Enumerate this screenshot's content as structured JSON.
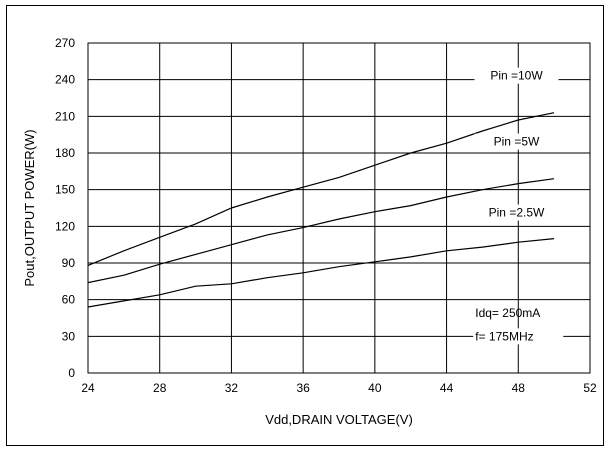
{
  "chart_data": {
    "type": "line",
    "title": "",
    "xlabel": "Vdd,DRAIN VOLTAGE(V)",
    "ylabel": "Pout,OUTPUT POWER(W)",
    "xlim": [
      24,
      52
    ],
    "ylim": [
      0,
      270
    ],
    "xticks": [
      24,
      28,
      32,
      36,
      40,
      44,
      48,
      52
    ],
    "yticks": [
      0,
      30,
      60,
      90,
      120,
      150,
      180,
      210,
      240,
      270
    ],
    "grid": true,
    "series": [
      {
        "name": "Pin =10W",
        "x": [
          24,
          26,
          28,
          30,
          32,
          34,
          36,
          38,
          40,
          42,
          44,
          46,
          48,
          50
        ],
        "y": [
          88,
          100,
          111,
          122,
          135,
          144,
          152,
          160,
          170,
          180,
          188,
          198,
          207,
          213
        ]
      },
      {
        "name": "Pin =5W",
        "x": [
          24,
          26,
          28,
          30,
          32,
          34,
          36,
          38,
          40,
          42,
          44,
          46,
          48,
          50
        ],
        "y": [
          74,
          80,
          89,
          97,
          105,
          113,
          119,
          126,
          132,
          137,
          144,
          150,
          155,
          159
        ]
      },
      {
        "name": "Pin =2.5W",
        "x": [
          24,
          26,
          28,
          30,
          32,
          34,
          36,
          38,
          40,
          42,
          44,
          46,
          48,
          50
        ],
        "y": [
          54,
          59,
          64,
          71,
          73,
          78,
          82,
          87,
          91,
          95,
          100,
          103,
          107,
          110
        ]
      }
    ],
    "annotations": [
      "Idq= 250mA",
      "f= 175MHz"
    ]
  }
}
